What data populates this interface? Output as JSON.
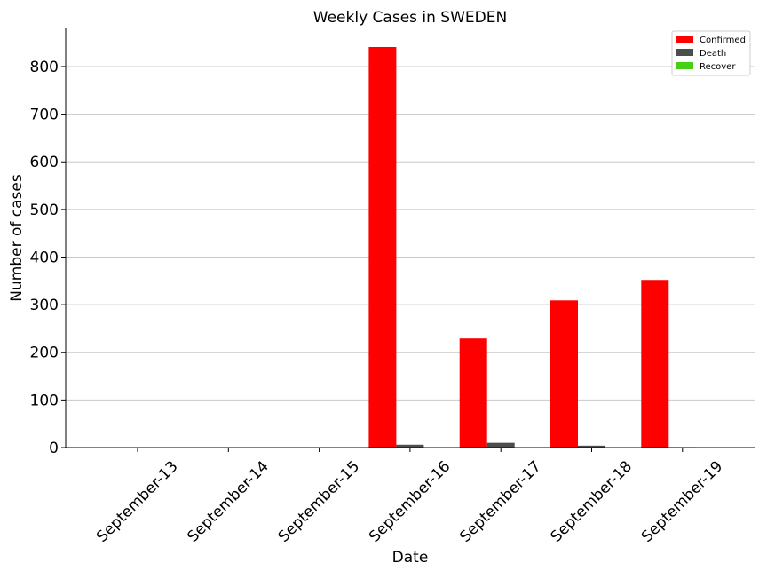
{
  "chart_data": {
    "type": "bar",
    "title": "Weekly Cases in SWEDEN",
    "xlabel": "Date",
    "ylabel": "Number of cases",
    "categories": [
      "September-13",
      "September-14",
      "September-15",
      "September-16",
      "September-17",
      "September-18",
      "September-19"
    ],
    "series": [
      {
        "name": "Confirmed",
        "color": "#ff0000",
        "values": [
          0,
          0,
          0,
          841,
          229,
          309,
          352
        ]
      },
      {
        "name": "Death",
        "color": "#4d4d4d",
        "values": [
          0,
          0,
          0,
          6,
          10,
          4,
          1
        ]
      },
      {
        "name": "Recover",
        "color": "#44d015",
        "values": [
          0,
          0,
          0,
          0,
          0,
          0,
          0
        ]
      }
    ],
    "ylim": [
      0,
      882
    ],
    "yticks": [
      0,
      100,
      200,
      300,
      400,
      500,
      600,
      700,
      800
    ],
    "grid": "horizontal",
    "legend_position": "top-right"
  }
}
